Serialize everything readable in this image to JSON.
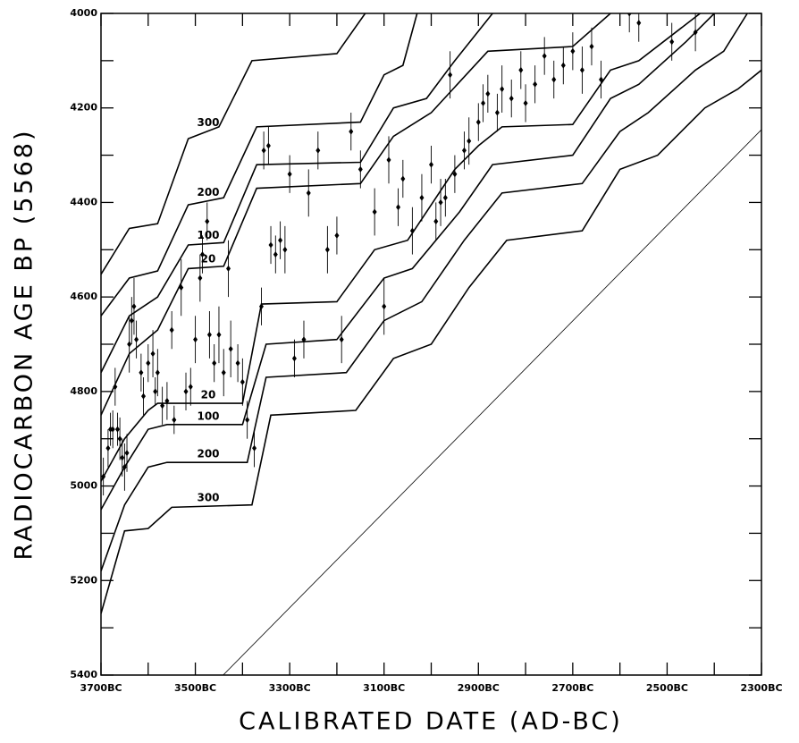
{
  "chart_data": {
    "type": "calibration",
    "x_label": "CALIBRATED DATE (AD-BC)",
    "y_label": "RADIOCARBON AGE BP (5568)",
    "xlim": [
      -3700,
      -2300
    ],
    "ylim": [
      5400,
      4000
    ],
    "xticks": [
      {
        "value": -3700,
        "label": "3700BC"
      },
      {
        "value": -3500,
        "label": "3500BC"
      },
      {
        "value": -3300,
        "label": "3300BC"
      },
      {
        "value": -3100,
        "label": "3100BC"
      },
      {
        "value": -2900,
        "label": "2900BC"
      },
      {
        "value": -2700,
        "label": "2700BC"
      },
      {
        "value": -2500,
        "label": "2500BC"
      },
      {
        "value": -2300,
        "label": "2300BC"
      }
    ],
    "xminor_ticks": [
      -3600,
      -3400,
      -3200,
      -3000,
      -2800,
      -2600,
      -2400
    ],
    "yticks": [
      4000,
      4200,
      4400,
      4600,
      4800,
      5000,
      5200,
      5400
    ],
    "yminor_ticks": [
      4100,
      4300,
      4500,
      4700,
      4900,
      5100,
      5300
    ],
    "color": "#000000",
    "series": [
      {
        "name": "300",
        "color": "#000000",
        "x": [
          -3700,
          -3640,
          -3580,
          -3515,
          -3450,
          -3380,
          -3200,
          -3140
        ],
        "values": [
          4552,
          4455,
          4445,
          4265,
          4240,
          4100,
          4085,
          4000
        ]
      },
      {
        "name": "200",
        "color": "#000000",
        "x": [
          -3700,
          -3640,
          -3580,
          -3515,
          -3440,
          -3370,
          -3150,
          -3100,
          -3060,
          -3030
        ],
        "values": [
          4640,
          4560,
          4545,
          4405,
          4390,
          4240,
          4230,
          4130,
          4110,
          4000
        ]
      },
      {
        "name": "100",
        "color": "#000000",
        "x": [
          -3700,
          -3640,
          -3580,
          -3515,
          -3440,
          -3370,
          -3150,
          -3080,
          -3010,
          -2950,
          -2870
        ],
        "values": [
          4760,
          4640,
          4600,
          4490,
          4485,
          4320,
          4315,
          4200,
          4180,
          4100,
          4000
        ]
      },
      {
        "name": "20",
        "color": "#000000",
        "x": [
          -3700,
          -3640,
          -3580,
          -3515,
          -3440,
          -3370,
          -3150,
          -3080,
          -3000,
          -2880,
          -2700,
          -2620
        ],
        "values": [
          4850,
          4720,
          4670,
          4540,
          4535,
          4370,
          4360,
          4260,
          4210,
          4080,
          4070,
          4000
        ]
      },
      {
        "name": "20",
        "color": "#000000",
        "x": [
          -3700,
          -3650,
          -3600,
          -3580,
          -3400,
          -3360,
          -3200,
          -3120,
          -3050,
          -2950,
          -2900,
          -2850,
          -2700,
          -2620,
          -2560,
          -2430
        ],
        "values": [
          4990,
          4900,
          4840,
          4825,
          4825,
          4615,
          4610,
          4500,
          4480,
          4330,
          4280,
          4240,
          4235,
          4120,
          4100,
          4000
        ]
      },
      {
        "name": "100",
        "color": "#000000",
        "x": [
          -3700,
          -3650,
          -3600,
          -3560,
          -3400,
          -3350,
          -3200,
          -3100,
          -3040,
          -2940,
          -2870,
          -2700,
          -2620,
          -2560,
          -2460,
          -2400
        ],
        "values": [
          5050,
          4960,
          4880,
          4870,
          4870,
          4700,
          4690,
          4560,
          4540,
          4420,
          4320,
          4300,
          4180,
          4150,
          4060,
          4000
        ]
      },
      {
        "name": "200",
        "color": "#000000",
        "x": [
          -3700,
          -3650,
          -3600,
          -3560,
          -3390,
          -3350,
          -3180,
          -3100,
          -3020,
          -2930,
          -2850,
          -2680,
          -2600,
          -2540,
          -2440,
          -2380,
          -2330
        ],
        "values": [
          5180,
          5040,
          4960,
          4950,
          4950,
          4770,
          4760,
          4650,
          4610,
          4480,
          4380,
          4360,
          4250,
          4210,
          4120,
          4080,
          4000
        ]
      },
      {
        "name": "300",
        "color": "#000000",
        "x": [
          -3700,
          -3650,
          -3600,
          -3550,
          -3380,
          -3340,
          -3160,
          -3080,
          -3000,
          -2920,
          -2840,
          -2680,
          -2600,
          -2520,
          -2420,
          -2350,
          -2300
        ],
        "values": [
          5270,
          5095,
          5090,
          5045,
          5040,
          4850,
          4840,
          4730,
          4700,
          4580,
          4480,
          4460,
          4330,
          4300,
          4200,
          4160,
          4120
        ]
      }
    ],
    "reference_line": {
      "x": [
        -3441,
        -2300
      ],
      "values": [
        5400,
        4246
      ]
    },
    "points": {
      "x": [
        -3695,
        -3685,
        -3680,
        -3675,
        -3670,
        -3665,
        -3660,
        -3655,
        -3650,
        -3645,
        -3640,
        -3635,
        -3630,
        -3625,
        -3615,
        -3610,
        -3600,
        -3590,
        -3585,
        -3580,
        -3570,
        -3560,
        -3550,
        -3545,
        -3530,
        -3520,
        -3510,
        -3500,
        -3490,
        -3485,
        -3475,
        -3470,
        -3460,
        -3450,
        -3440,
        -3430,
        -3425,
        -3410,
        -3400,
        -3390,
        -3375,
        -3360,
        -3355,
        -3345,
        -3340,
        -3330,
        -3320,
        -3310,
        -3300,
        -3290,
        -3270,
        -3260,
        -3240,
        -3220,
        -3200,
        -3190,
        -3170,
        -3150,
        -3120,
        -3100,
        -3090,
        -3070,
        -3060,
        -3040,
        -3020,
        -3000,
        -2990,
        -2980,
        -2970,
        -2960,
        -2950,
        -2930,
        -2920,
        -2900,
        -2890,
        -2880,
        -2860,
        -2850,
        -2830,
        -2810,
        -2800,
        -2780,
        -2760,
        -2740,
        -2720,
        -2700,
        -2680,
        -2660,
        -2640,
        -2580,
        -2560,
        -2490,
        -2440
      ],
      "values": [
        4980,
        4920,
        4880,
        4880,
        4790,
        4880,
        4900,
        4940,
        4960,
        4930,
        4700,
        4650,
        4620,
        4690,
        4760,
        4810,
        4740,
        4720,
        4800,
        4760,
        4830,
        4820,
        4670,
        4860,
        4580,
        4800,
        4790,
        4690,
        4560,
        4510,
        4440,
        4680,
        4740,
        4680,
        4760,
        4540,
        4710,
        4740,
        4780,
        4860,
        4920,
        4620,
        4290,
        4280,
        4490,
        4510,
        4480,
        4500,
        4340,
        4730,
        4690,
        4380,
        4290,
        4500,
        4470,
        4690,
        4250,
        4330,
        4420,
        4620,
        4310,
        4410,
        4350,
        4460,
        4390,
        4320,
        4440,
        4400,
        4390,
        4130,
        4340,
        4290,
        4270,
        4230,
        4190,
        4170,
        4210,
        4160,
        4180,
        4120,
        4190,
        4150,
        4090,
        4140,
        4110,
        4080,
        4120,
        4070,
        4140,
        4000,
        4020,
        4060,
        4040
      ],
      "err": [
        40,
        40,
        35,
        40,
        40,
        35,
        45,
        40,
        50,
        40,
        60,
        50,
        60,
        40,
        40,
        40,
        40,
        50,
        30,
        50,
        40,
        40,
        40,
        30,
        60,
        40,
        40,
        50,
        50,
        40,
        40,
        50,
        40,
        60,
        50,
        60,
        60,
        40,
        50,
        40,
        40,
        40,
        40,
        40,
        40,
        40,
        40,
        50,
        40,
        40,
        40,
        50,
        40,
        50,
        40,
        50,
        40,
        40,
        50,
        60,
        50,
        40,
        40,
        50,
        50,
        40,
        40,
        50,
        40,
        50,
        40,
        40,
        50,
        40,
        40,
        40,
        40,
        50,
        40,
        40,
        40,
        40,
        40,
        40,
        40,
        40,
        50,
        40,
        40,
        40,
        40,
        40,
        40
      ]
    }
  }
}
